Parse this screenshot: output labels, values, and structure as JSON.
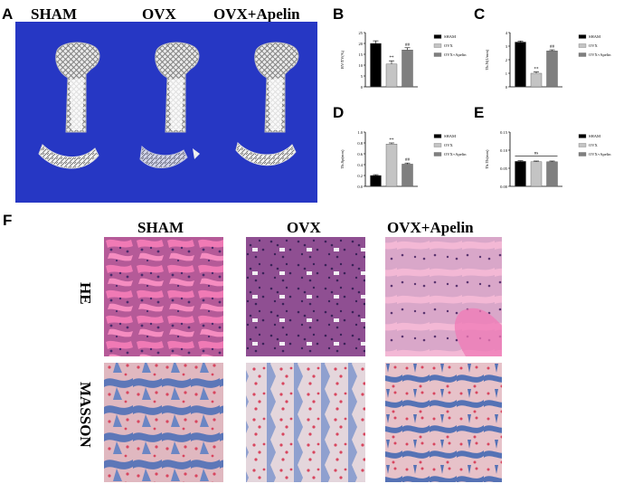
{
  "panel_a": {
    "letter": "A",
    "groups": [
      "SHAM",
      "OVX",
      "OVX+Apelin"
    ]
  },
  "panel_f": {
    "letter": "F",
    "groups": [
      "SHAM",
      "OVX",
      "OVX+Apelin"
    ],
    "stains": [
      "HE",
      "MASSON"
    ]
  },
  "colors": {
    "ct_background": "#2637c4",
    "sham": "#000000",
    "ovx": "#c4c4c4",
    "ovx_apelin": "#7f7f7f",
    "he_pink": "#e8a9c8",
    "masson_blue": "#5d77b8",
    "masson_red": "#d8465f"
  },
  "chart_data": [
    {
      "panel": "B",
      "type": "bar",
      "categories": [
        "SHAM",
        "OVX",
        "OVX+Apelin"
      ],
      "values": [
        20,
        10.5,
        17
      ],
      "errors": [
        1.2,
        1.5,
        1.0
      ],
      "ylabel": "BV/TV(%)",
      "ylim": [
        0,
        25
      ],
      "yticks": [
        "0",
        "5",
        "10",
        "15",
        "20",
        "25"
      ],
      "annotations": [
        "",
        "**",
        "##"
      ],
      "legend": [
        "SHAM",
        "OVX",
        "OVX+Apelin"
      ],
      "legend_position": "right"
    },
    {
      "panel": "C",
      "type": "bar",
      "categories": [
        "SHAM",
        "OVX",
        "OVX+Apelin"
      ],
      "values": [
        3.3,
        1.0,
        2.65
      ],
      "errors": [
        0.08,
        0.1,
        0.08
      ],
      "ylabel": "Tb.N(1/mm)",
      "ylim": [
        0,
        4
      ],
      "yticks": [
        "0",
        "1",
        "2",
        "3",
        "4"
      ],
      "annotations": [
        "",
        "**",
        "##"
      ],
      "legend": [
        "SHAM",
        "OVX",
        "OVX+Apelin"
      ],
      "legend_position": "right"
    },
    {
      "panel": "D",
      "type": "bar",
      "categories": [
        "SHAM",
        "OVX",
        "OVX+Apelin"
      ],
      "values": [
        0.2,
        0.78,
        0.41
      ],
      "errors": [
        0.015,
        0.02,
        0.02
      ],
      "ylabel": "Tb.Sp(mm)",
      "ylim": [
        0,
        1.0
      ],
      "yticks": [
        "0.0",
        "0.2",
        "0.4",
        "0.6",
        "0.8",
        "1.0"
      ],
      "annotations": [
        "",
        "**",
        "##"
      ],
      "legend": [
        "SHAM",
        "OVX",
        "OVX+Apelin"
      ],
      "legend_position": "right"
    },
    {
      "panel": "E",
      "type": "bar",
      "categories": [
        "SHAM",
        "OVX",
        "OVX+Apelin"
      ],
      "values": [
        0.069,
        0.068,
        0.068
      ],
      "errors": [
        0.002,
        0.002,
        0.002
      ],
      "ylabel": "Tb.Th(mm)",
      "ylim": [
        0,
        0.15
      ],
      "yticks": [
        "0.00",
        "0.05",
        "0.10",
        "0.15"
      ],
      "bracket_label": "ns",
      "legend": [
        "SHAM",
        "OVX",
        "OVX+Apelin"
      ],
      "legend_position": "right"
    }
  ]
}
